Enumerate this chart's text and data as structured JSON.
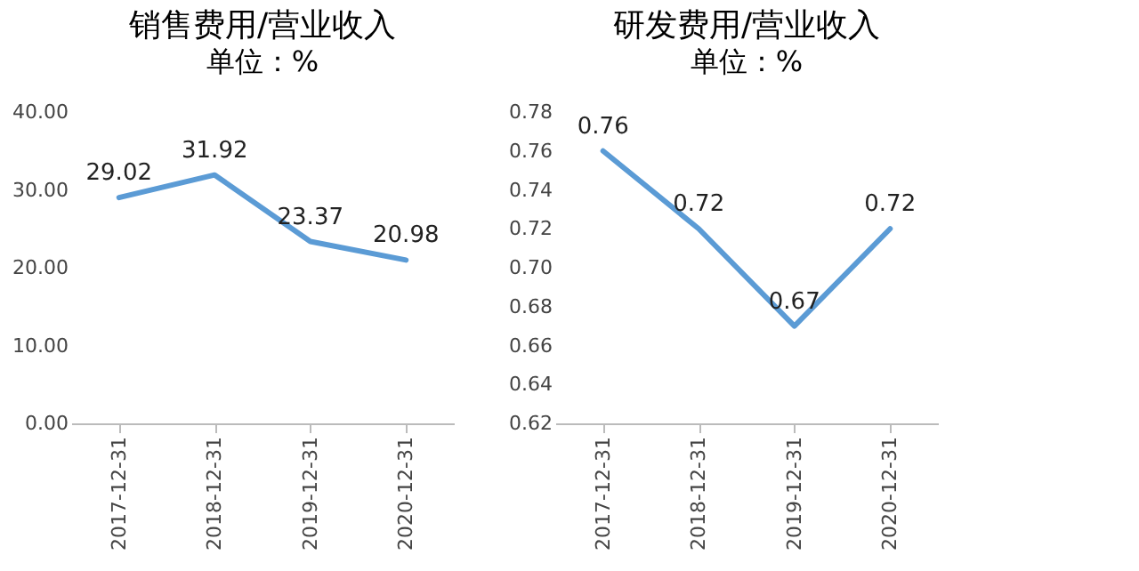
{
  "chart_data": [
    {
      "type": "line",
      "title": "销售费用/营业收入",
      "subtitle": "单位：%",
      "categories": [
        "2017-12-31",
        "2018-12-31",
        "2019-12-31",
        "2020-12-31"
      ],
      "series": [
        {
          "color": "#5b9bd5",
          "values": [
            29.02,
            31.92,
            23.37,
            20.98
          ]
        }
      ],
      "ylim": [
        0,
        40
      ],
      "yticks": [
        {
          "value": 0,
          "label": "0.00"
        },
        {
          "value": 10,
          "label": "10.00"
        },
        {
          "value": 20,
          "label": "20.00"
        },
        {
          "value": 30,
          "label": "30.00"
        },
        {
          "value": 40,
          "label": "40.00"
        }
      ],
      "data_labels": true,
      "grid": false,
      "legend": false,
      "marker": "none"
    },
    {
      "type": "line",
      "title": "研发费用/营业收入",
      "subtitle": "单位：%",
      "categories": [
        "2017-12-31",
        "2018-12-31",
        "2019-12-31",
        "2020-12-31"
      ],
      "series": [
        {
          "color": "#5b9bd5",
          "values": [
            0.76,
            0.72,
            0.67,
            0.72
          ]
        }
      ],
      "ylim": [
        0.62,
        0.78
      ],
      "yticks": [
        {
          "value": 0.62,
          "label": "0.62"
        },
        {
          "value": 0.64,
          "label": "0.64"
        },
        {
          "value": 0.66,
          "label": "0.66"
        },
        {
          "value": 0.68,
          "label": "0.68"
        },
        {
          "value": 0.7,
          "label": "0.70"
        },
        {
          "value": 0.72,
          "label": "0.72"
        },
        {
          "value": 0.74,
          "label": "0.74"
        },
        {
          "value": 0.76,
          "label": "0.76"
        },
        {
          "value": 0.78,
          "label": "0.78"
        }
      ],
      "data_labels": true,
      "grid": false,
      "legend": false,
      "marker": "none"
    }
  ]
}
